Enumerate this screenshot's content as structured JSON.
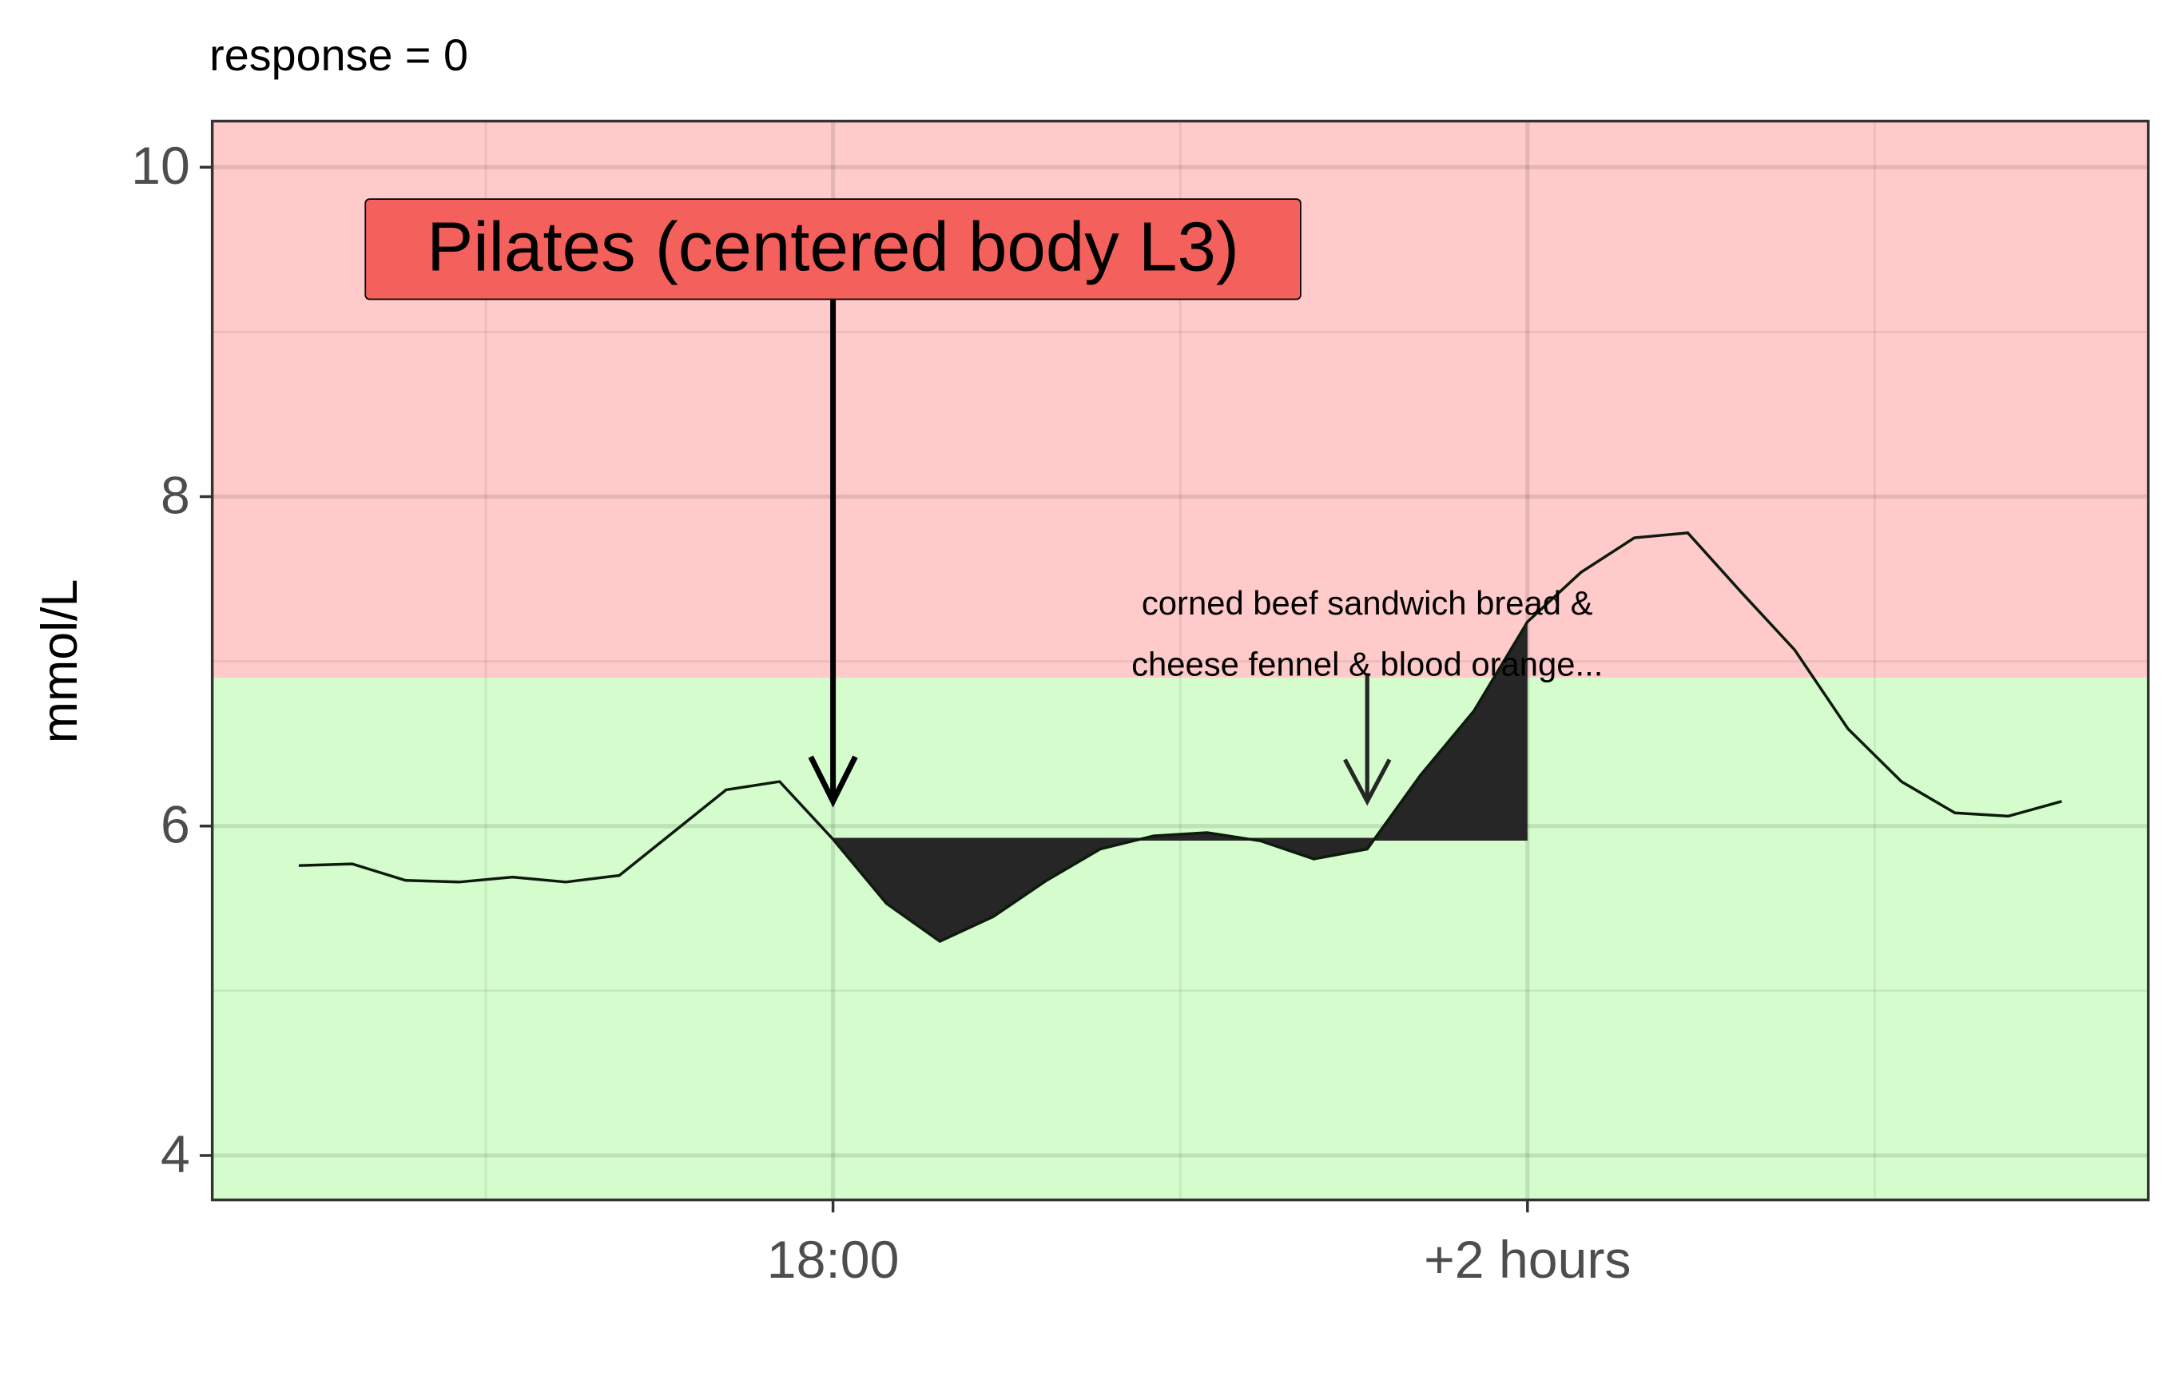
{
  "chart_data": {
    "type": "line",
    "title": "response = 0",
    "y_label": "mmol/L",
    "x": [
      -10,
      -9,
      -8,
      -7,
      -6,
      -5,
      -4,
      -3,
      -2,
      -1,
      0,
      1,
      2,
      3,
      4,
      5,
      6,
      7,
      8,
      9,
      10,
      11,
      12,
      13,
      14,
      15,
      16,
      17,
      18,
      19,
      20,
      21,
      22,
      23
    ],
    "series": [
      {
        "color": "#0d1a0d",
        "values": [
          5.76,
          5.77,
          5.67,
          5.66,
          5.69,
          5.66,
          5.7,
          5.96,
          6.22,
          6.27,
          5.92,
          5.53,
          5.3,
          5.45,
          5.67,
          5.86,
          5.94,
          5.96,
          5.91,
          5.8,
          5.86,
          6.31,
          6.7,
          7.24,
          7.54,
          7.75,
          7.78,
          7.42,
          7.07,
          6.59,
          6.27,
          6.08,
          6.06,
          6.15
        ]
      }
    ],
    "xlim": [
      -11.62,
      24.62
    ],
    "ylim": [
      3.73,
      10.28
    ],
    "xticks": [
      {
        "value": 0,
        "label": "18:00"
      },
      {
        "value": 13,
        "label": "+2 hours"
      }
    ],
    "yticks": [
      4,
      6,
      8,
      10
    ],
    "grid": true,
    "threshold": 6.9,
    "low_color": "#d4fccc",
    "high_color": "#fecaca",
    "baseline": 5.92,
    "baseline_x": [
      0,
      13
    ],
    "fill_color": "#262626",
    "annotations": [
      {
        "lines": [
          "Pilates (centered body L3)"
        ],
        "x": 0,
        "y": 6.15,
        "color": "#f4605b"
      },
      {
        "lines": [
          "corned beef sandwich bread &",
          "cheese fennel & blood orange..."
        ],
        "x": 10,
        "y": 6.15
      }
    ]
  }
}
